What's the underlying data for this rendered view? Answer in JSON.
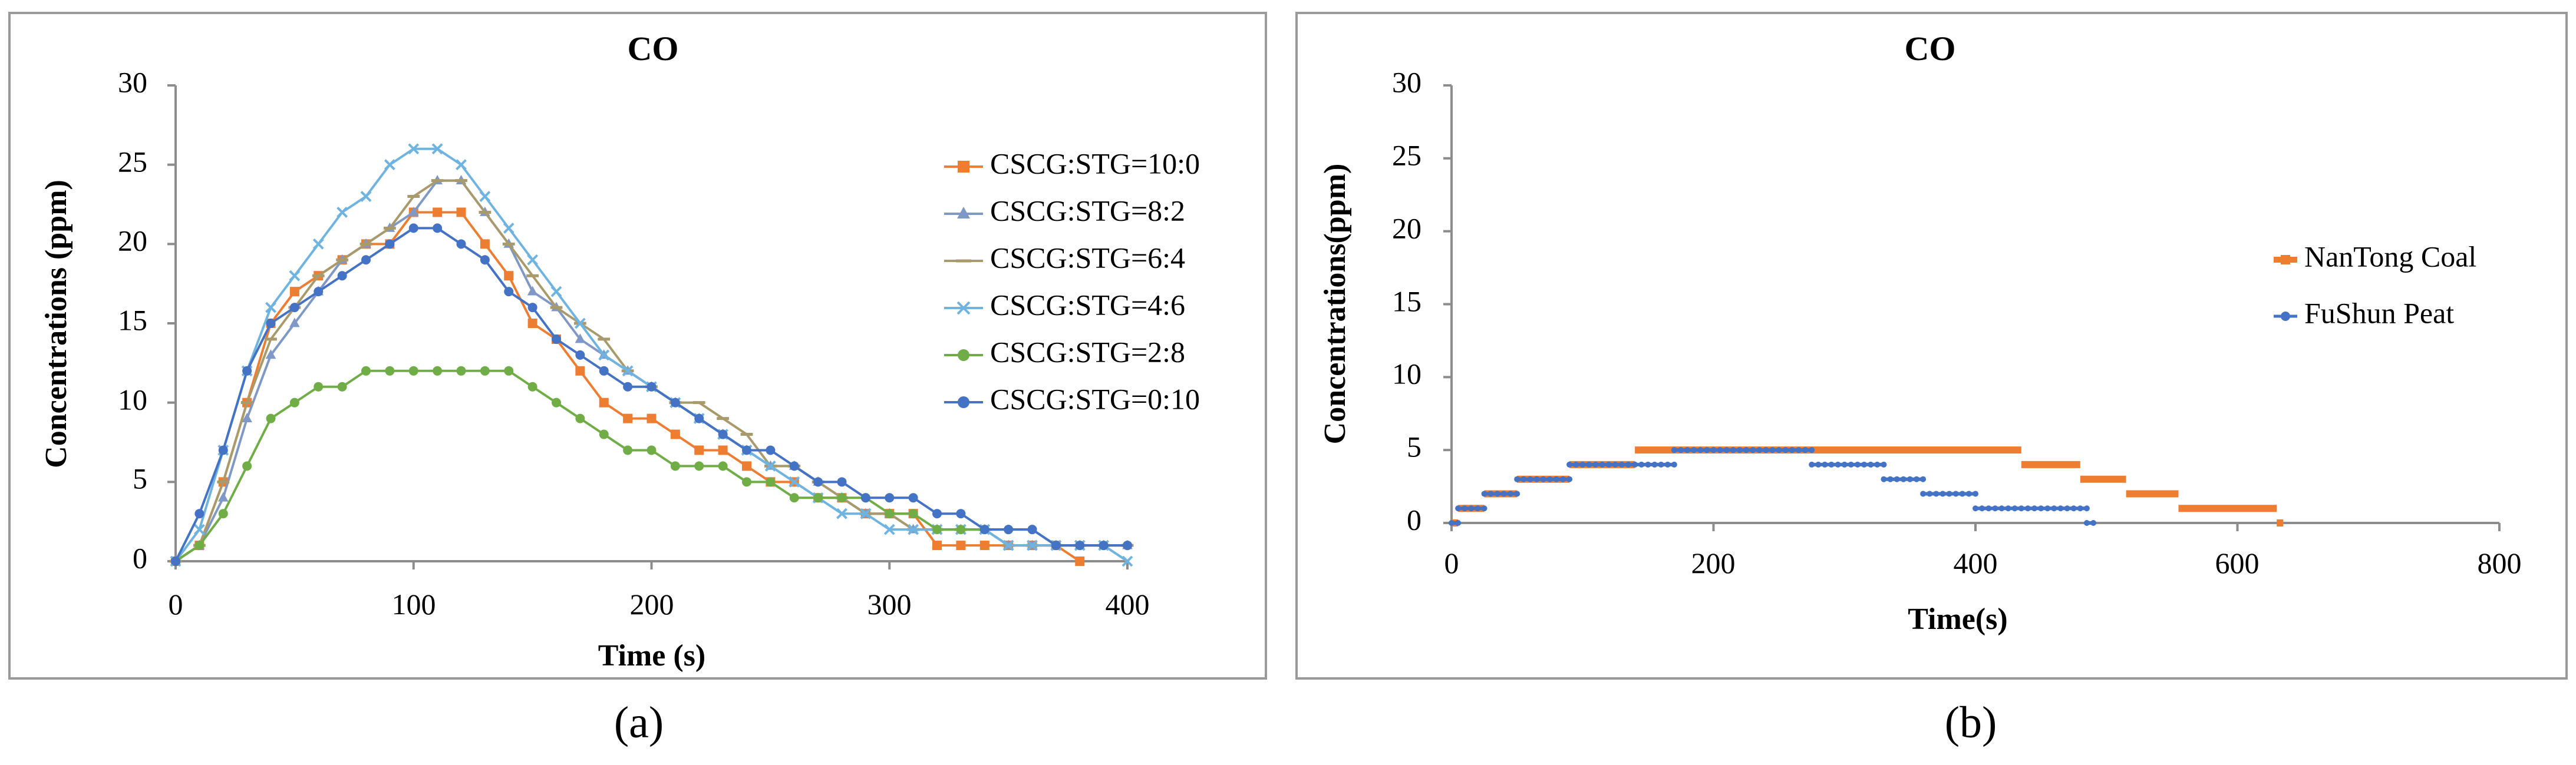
{
  "chart_data": [
    {
      "type": "line",
      "panel_label": "(a)",
      "title": "CO",
      "xlabel": "Time (s)",
      "ylabel": "Concentrations (ppm)",
      "xlim": [
        0,
        400
      ],
      "ylim": [
        0,
        30
      ],
      "xticks": [
        0,
        100,
        200,
        300,
        400
      ],
      "yticks": [
        0,
        5,
        10,
        15,
        20,
        25,
        30
      ],
      "grid": false,
      "legend_position": "right",
      "series": [
        {
          "name": "CSCG:STG=10:0",
          "color": "#ED7D31",
          "marker": "square",
          "x": [
            0,
            10,
            20,
            30,
            40,
            50,
            60,
            70,
            80,
            90,
            100,
            110,
            120,
            130,
            140,
            150,
            160,
            170,
            180,
            190,
            200,
            210,
            220,
            230,
            240,
            250,
            260,
            270,
            280,
            290,
            300,
            310,
            320,
            330,
            340,
            350,
            360,
            370,
            380
          ],
          "y": [
            0,
            1,
            5,
            10,
            15,
            17,
            18,
            19,
            20,
            20,
            22,
            22,
            22,
            20,
            18,
            15,
            14,
            12,
            10,
            9,
            9,
            8,
            7,
            7,
            6,
            5,
            5,
            4,
            4,
            3,
            3,
            3,
            1,
            1,
            1,
            1,
            1,
            1,
            0
          ]
        },
        {
          "name": "CSCG:STG=8:2",
          "color": "#7F98C5",
          "marker": "triangle",
          "x": [
            0,
            10,
            20,
            30,
            40,
            50,
            60,
            70,
            80,
            90,
            100,
            110,
            120,
            130,
            140,
            150,
            160,
            170,
            180,
            190,
            200,
            210,
            220,
            230,
            240,
            250,
            260,
            270,
            280,
            290,
            300,
            310,
            320,
            330,
            340,
            350,
            360,
            370,
            380,
            390,
            400
          ],
          "y": [
            0,
            1,
            4,
            9,
            13,
            15,
            17,
            19,
            20,
            21,
            22,
            24,
            24,
            22,
            20,
            17,
            16,
            14,
            13,
            12,
            11,
            10,
            9,
            8,
            7,
            6,
            6,
            5,
            4,
            3,
            3,
            2,
            2,
            2,
            2,
            1,
            1,
            1,
            1,
            1,
            1
          ]
        },
        {
          "name": "CSCG:STG=6:4",
          "color": "#A99A6B",
          "marker": "dash",
          "x": [
            0,
            10,
            20,
            30,
            40,
            50,
            60,
            70,
            80,
            90,
            100,
            110,
            120,
            130,
            140,
            150,
            160,
            170,
            180,
            190,
            200,
            210,
            220,
            230,
            240,
            250,
            260,
            270,
            280,
            290,
            300,
            310,
            320,
            330,
            340,
            350,
            360,
            370,
            380,
            390,
            400
          ],
          "y": [
            0,
            1,
            5,
            10,
            14,
            16,
            18,
            19,
            20,
            21,
            23,
            24,
            24,
            22,
            20,
            18,
            16,
            15,
            14,
            12,
            11,
            10,
            10,
            9,
            8,
            6,
            6,
            5,
            4,
            3,
            3,
            2,
            2,
            2,
            2,
            1,
            1,
            1,
            1,
            1,
            1
          ]
        },
        {
          "name": "CSCG:STG=4:6",
          "color": "#6FB3E0",
          "marker": "x",
          "x": [
            0,
            10,
            20,
            30,
            40,
            50,
            60,
            70,
            80,
            90,
            100,
            110,
            120,
            130,
            140,
            150,
            160,
            170,
            180,
            190,
            200,
            210,
            220,
            230,
            240,
            250,
            260,
            270,
            280,
            290,
            300,
            310,
            320,
            330,
            340,
            350,
            360,
            370,
            380,
            390,
            400
          ],
          "y": [
            0,
            2,
            7,
            12,
            16,
            18,
            20,
            22,
            23,
            25,
            26,
            26,
            25,
            23,
            21,
            19,
            17,
            15,
            13,
            12,
            11,
            10,
            9,
            8,
            7,
            6,
            5,
            4,
            3,
            3,
            2,
            2,
            2,
            2,
            2,
            1,
            1,
            1,
            1,
            1,
            0
          ]
        },
        {
          "name": "CSCG:STG=2:8",
          "color": "#70AD47",
          "marker": "circle",
          "x": [
            0,
            10,
            20,
            30,
            40,
            50,
            60,
            70,
            80,
            90,
            100,
            110,
            120,
            130,
            140,
            150,
            160,
            170,
            180,
            190,
            200,
            210,
            220,
            230,
            240,
            250,
            260,
            270,
            280,
            290,
            300,
            310,
            320,
            330,
            340,
            350,
            360,
            370,
            380,
            390,
            400
          ],
          "y": [
            0,
            1,
            3,
            6,
            9,
            10,
            11,
            11,
            12,
            12,
            12,
            12,
            12,
            12,
            12,
            11,
            10,
            9,
            8,
            7,
            7,
            6,
            6,
            6,
            5,
            5,
            4,
            4,
            4,
            4,
            3,
            3,
            2,
            2,
            2,
            2,
            2,
            1,
            1,
            1,
            1
          ]
        },
        {
          "name": "CSCG:STG=0:10",
          "color": "#4472C4",
          "marker": "circle",
          "x": [
            0,
            10,
            20,
            30,
            40,
            50,
            60,
            70,
            80,
            90,
            100,
            110,
            120,
            130,
            140,
            150,
            160,
            170,
            180,
            190,
            200,
            210,
            220,
            230,
            240,
            250,
            260,
            270,
            280,
            290,
            300,
            310,
            320,
            330,
            340,
            350,
            360,
            370,
            380,
            390,
            400
          ],
          "y": [
            0,
            3,
            7,
            12,
            15,
            16,
            17,
            18,
            19,
            20,
            21,
            21,
            20,
            19,
            17,
            16,
            14,
            13,
            12,
            11,
            11,
            10,
            9,
            8,
            7,
            7,
            6,
            5,
            5,
            4,
            4,
            4,
            3,
            3,
            2,
            2,
            2,
            1,
            1,
            1,
            1
          ]
        }
      ]
    },
    {
      "type": "scatter",
      "panel_label": "(b)",
      "title": "CO",
      "xlabel": "Time(s)",
      "ylabel": "Concentrations(ppm)",
      "xlim": [
        0,
        800
      ],
      "ylim": [
        0,
        30
      ],
      "xticks": [
        0,
        200,
        400,
        600,
        800
      ],
      "yticks": [
        0,
        5,
        10,
        15,
        20,
        25,
        30
      ],
      "grid": false,
      "legend_position": "right",
      "series": [
        {
          "name": "NanTong Coal",
          "color": "#ED7D31",
          "marker": "square",
          "steps": [
            [
              0,
              5,
              0
            ],
            [
              5,
              25,
              1
            ],
            [
              25,
              50,
              2
            ],
            [
              50,
              90,
              3
            ],
            [
              90,
              140,
              4
            ],
            [
              140,
              435,
              5
            ],
            [
              435,
              480,
              4
            ],
            [
              480,
              515,
              3
            ],
            [
              515,
              555,
              2
            ],
            [
              555,
              630,
              1
            ],
            [
              630,
              635,
              0
            ]
          ]
        },
        {
          "name": "FuShun Peat",
          "color": "#4472C4",
          "marker": "circle",
          "steps": [
            [
              0,
              5,
              0
            ],
            [
              5,
              25,
              1
            ],
            [
              25,
              50,
              2
            ],
            [
              50,
              90,
              3
            ],
            [
              90,
              170,
              4
            ],
            [
              170,
              275,
              5
            ],
            [
              275,
              330,
              4
            ],
            [
              330,
              360,
              3
            ],
            [
              360,
              400,
              2
            ],
            [
              400,
              485,
              1
            ],
            [
              485,
              490,
              0
            ]
          ]
        }
      ]
    }
  ]
}
